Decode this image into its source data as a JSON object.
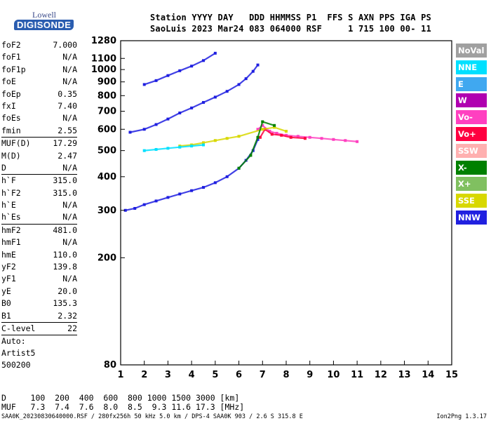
{
  "logo": {
    "top_text": "Lowell",
    "brand": "DIGISONDE"
  },
  "header": {
    "line1": "Station YYYY DAY   DDD HHMMSS P1  FFS S AXN PPS IGA PS",
    "line2": "SaoLuis 2023 Mar24 083 064000 RSF     1 715 100 00- 11"
  },
  "params": {
    "group1": [
      {
        "name": "foF2",
        "value": "7.000"
      },
      {
        "name": "foF1",
        "value": "N/A"
      },
      {
        "name": "foF1p",
        "value": "N/A"
      },
      {
        "name": "foE",
        "value": "N/A"
      },
      {
        "name": "foEp",
        "value": "0.35"
      },
      {
        "name": "fxI",
        "value": "7.40"
      },
      {
        "name": "foEs",
        "value": "N/A"
      },
      {
        "name": "fmin",
        "value": "2.55"
      }
    ],
    "group2": [
      {
        "name": "MUF(D)",
        "value": "17.29"
      },
      {
        "name": "M(D)",
        "value": "2.47"
      },
      {
        "name": "D",
        "value": "N/A"
      }
    ],
    "group3": [
      {
        "name": "h`F",
        "value": "315.0"
      },
      {
        "name": "h`F2",
        "value": "315.0"
      },
      {
        "name": "h`E",
        "value": "N/A"
      },
      {
        "name": "h`Es",
        "value": "N/A"
      }
    ],
    "group4": [
      {
        "name": "hmF2",
        "value": "481.0"
      },
      {
        "name": "hmF1",
        "value": "N/A"
      },
      {
        "name": "hmE",
        "value": "110.0"
      },
      {
        "name": "yF2",
        "value": "139.8"
      },
      {
        "name": "yF1",
        "value": "N/A"
      },
      {
        "name": "yE",
        "value": "20.0"
      },
      {
        "name": "B0",
        "value": "135.3"
      },
      {
        "name": "B1",
        "value": "2.32"
      }
    ],
    "group5": [
      {
        "name": "C-level",
        "value": "22"
      }
    ],
    "auto_label": "Auto:",
    "artist": "Artist5",
    "artist_version": "500200"
  },
  "legend": [
    {
      "label": "NoVal",
      "color": "#a0a0a0"
    },
    {
      "label": "NNE",
      "color": "#00e0ff"
    },
    {
      "label": "E",
      "color": "#40a8f0"
    },
    {
      "label": "W",
      "color": "#b000b0"
    },
    {
      "label": "Vo-",
      "color": "#ff40c0"
    },
    {
      "label": "Vo+",
      "color": "#ff0040"
    },
    {
      "label": "SSW",
      "color": "#ffb0b0"
    },
    {
      "label": "X-",
      "color": "#008000"
    },
    {
      "label": "X+",
      "color": "#80c060"
    },
    {
      "label": "SSE",
      "color": "#d8d800"
    },
    {
      "label": "NNW",
      "color": "#2020e0"
    }
  ],
  "bottom": {
    "d_row": "D     100  200  400  600  800 1000 1500 3000 [km]",
    "muf_row": "MUF   7.3  7.4  7.6  8.0  8.5  9.3 11.6 17.3 [MHz]"
  },
  "footer": {
    "left": "SAA0K_20230830640000.RSF / 280fx256h 50 kHz 5.0 km / DPS-4 SAA0K 903 / 2.6 S 315.8 E",
    "right": "Ion2Png 1.3.17"
  },
  "chart_data": {
    "type": "scatter",
    "title": "",
    "xlabel": "",
    "ylabel": "",
    "xlim": [
      1,
      15
    ],
    "ylim": [
      80,
      1280
    ],
    "x_ticks": [
      1,
      2,
      3,
      4,
      5,
      6,
      7,
      8,
      9,
      10,
      11,
      12,
      13,
      14,
      15
    ],
    "y_ticks": [
      80,
      200,
      300,
      400,
      500,
      600,
      700,
      800,
      900,
      1000,
      1100,
      1280
    ],
    "y_scale": "log",
    "grid": false,
    "legend_position": "right",
    "series": [
      {
        "legend": "NNW",
        "color": "#2020e0",
        "x": [
          1.2,
          1.6,
          2.0,
          2.5,
          3.0,
          3.5,
          4.0,
          4.5,
          5.0,
          5.5,
          6.0,
          6.3,
          6.6,
          6.8
        ],
        "y": [
          300,
          305,
          315,
          325,
          335,
          345,
          355,
          365,
          380,
          400,
          430,
          460,
          500,
          550
        ]
      },
      {
        "legend": "NNW",
        "color": "#2020e0",
        "x": [
          1.4,
          2.0,
          2.5,
          3.0,
          3.5,
          4.0,
          4.5,
          5.0,
          5.5,
          6.0,
          6.3,
          6.6,
          6.8
        ],
        "y": [
          585,
          600,
          625,
          655,
          690,
          720,
          755,
          790,
          830,
          880,
          925,
          985,
          1040
        ]
      },
      {
        "legend": "NNW",
        "color": "#2020e0",
        "x": [
          2.0,
          2.5,
          3.0,
          3.5,
          4.0,
          4.5,
          5.0
        ],
        "y": [
          880,
          910,
          950,
          990,
          1030,
          1080,
          1150
        ]
      },
      {
        "legend": "Vo-",
        "color": "#ff40c0",
        "x": [
          6.8,
          7.0,
          7.3,
          7.6,
          8.0,
          8.5,
          9.0,
          9.5,
          10.0,
          10.5,
          11.0
        ],
        "y": [
          600,
          620,
          590,
          580,
          570,
          565,
          560,
          555,
          550,
          545,
          540
        ]
      },
      {
        "legend": "Vo+",
        "color": "#ff0040",
        "x": [
          6.9,
          7.1,
          7.4,
          7.8,
          8.2,
          8.8
        ],
        "y": [
          560,
          600,
          575,
          570,
          560,
          555
        ]
      },
      {
        "legend": "SSE",
        "color": "#d8d800",
        "x": [
          3.5,
          4.0,
          4.5,
          5.0,
          5.5,
          6.0,
          7.0,
          7.5,
          8.0
        ],
        "y": [
          520,
          525,
          535,
          545,
          555,
          565,
          600,
          610,
          590
        ]
      },
      {
        "legend": "NNE",
        "color": "#00e0ff",
        "x": [
          2.0,
          2.5,
          3.0,
          3.5,
          4.0,
          4.5
        ],
        "y": [
          500,
          505,
          510,
          515,
          520,
          525
        ]
      },
      {
        "legend": "X-",
        "color": "#008000",
        "x": [
          6.0,
          6.5,
          6.8,
          7.0,
          7.5
        ],
        "y": [
          430,
          480,
          560,
          640,
          620
        ]
      }
    ]
  }
}
